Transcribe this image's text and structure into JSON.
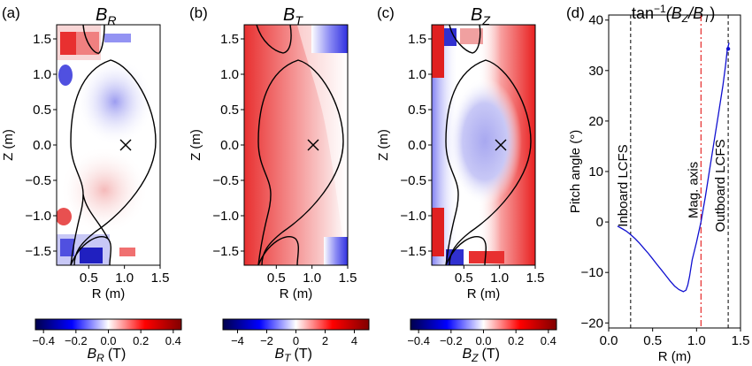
{
  "panels": [
    {
      "letter": "(a)",
      "title_main": "B",
      "title_sub": "R",
      "xlabel": "R (m)",
      "ylabel": "Z (m)",
      "xticks": [
        "0.5",
        "1.0",
        "1.5"
      ],
      "yticks": [
        "1.5",
        "1.0",
        "0.5",
        "0.0",
        "−0.5",
        "−1.0",
        "−1.5"
      ],
      "colorbar_ticks": [
        "−0.4",
        "−0.2",
        "0.0",
        "0.2",
        "0.4"
      ],
      "colorbar_label_main": "B",
      "colorbar_label_sub": "R",
      "colorbar_label_unit": "(T)",
      "colorbar_range": [
        -0.45,
        0.45
      ]
    },
    {
      "letter": "(b)",
      "title_main": "B",
      "title_sub": "T",
      "xlabel": "R (m)",
      "ylabel": "Z (m)",
      "xticks": [
        "0.5",
        "1.0",
        "1.5"
      ],
      "yticks": [
        "1.5",
        "1.0",
        "0.5",
        "0.0",
        "−0.5",
        "−1.0",
        "−1.5"
      ],
      "colorbar_ticks": [
        "−4",
        "−2",
        "0",
        "2",
        "4"
      ],
      "colorbar_label_main": "B",
      "colorbar_label_sub": "T",
      "colorbar_label_unit": "(T)",
      "colorbar_range": [
        -5,
        5
      ]
    },
    {
      "letter": "(c)",
      "title_main": "B",
      "title_sub": "Z",
      "xlabel": "R (m)",
      "ylabel": "Z (m)",
      "xticks": [
        "0.5",
        "1.0",
        "1.5"
      ],
      "yticks": [
        "1.5",
        "1.0",
        "0.5",
        "0.0",
        "−0.5",
        "−1.0",
        "−1.5"
      ],
      "colorbar_ticks": [
        "−0.4",
        "−0.2",
        "0.0",
        "0.2",
        "0.4"
      ],
      "colorbar_label_main": "B",
      "colorbar_label_sub": "Z",
      "colorbar_label_unit": "(T)",
      "colorbar_range": [
        -0.45,
        0.45
      ]
    }
  ],
  "colors": {
    "blue": "#0000cc",
    "red": "#cc0000",
    "contour": "#000000",
    "line": "#1010d0",
    "axis_red": "#e00000"
  },
  "chart_data": [
    {
      "type": "heatmap",
      "title": "B_R",
      "xlabel": "R (m)",
      "ylabel": "Z (m)",
      "xlim": [
        0.05,
        1.5
      ],
      "ylim": [
        -1.7,
        1.7
      ],
      "magnetic_axis": [
        1.05,
        0.0
      ],
      "clim": [
        -0.45,
        0.45
      ]
    },
    {
      "type": "heatmap",
      "title": "B_T",
      "xlabel": "R (m)",
      "ylabel": "Z (m)",
      "xlim": [
        0.05,
        1.5
      ],
      "ylim": [
        -1.7,
        1.7
      ],
      "magnetic_axis": [
        1.05,
        0.0
      ],
      "clim": [
        -5,
        5
      ]
    },
    {
      "type": "heatmap",
      "title": "B_Z",
      "xlabel": "R (m)",
      "ylabel": "Z (m)",
      "xlim": [
        0.05,
        1.5
      ],
      "ylim": [
        -1.7,
        1.7
      ],
      "magnetic_axis": [
        1.05,
        0.0
      ],
      "clim": [
        -0.45,
        0.45
      ]
    },
    {
      "type": "line",
      "letter": "(d)",
      "title": "tan⁻¹(B_Z/B_T)",
      "title_prefix": "tan",
      "title_sup": "−1",
      "title_args_open": "(B",
      "title_args_z": "Z",
      "title_args_mid": "/B",
      "title_args_t": "T",
      "title_args_close": ")",
      "xlabel": "R (m)",
      "ylabel": "Pitch angle (°)",
      "xlim": [
        0.0,
        1.5
      ],
      "ylim": [
        -21,
        41
      ],
      "xticks": [
        "0.0",
        "0.5",
        "1.0",
        "1.5"
      ],
      "yticks": [
        "40",
        "30",
        "20",
        "10",
        "0",
        "−10",
        "−20"
      ],
      "series": [
        {
          "name": "pitch angle",
          "x": [
            0.1,
            0.15,
            0.2,
            0.25,
            0.3,
            0.35,
            0.4,
            0.45,
            0.5,
            0.55,
            0.6,
            0.65,
            0.7,
            0.75,
            0.8,
            0.85,
            0.88,
            0.9,
            0.92,
            0.95,
            1.0,
            1.05,
            1.1,
            1.15,
            1.2,
            1.25,
            1.3,
            1.33,
            1.35,
            1.37
          ],
          "y": [
            -0.8,
            -1.3,
            -1.8,
            -2.5,
            -3.3,
            -4.2,
            -5.2,
            -6.2,
            -7.3,
            -8.4,
            -9.5,
            -10.6,
            -11.7,
            -12.7,
            -13.4,
            -13.8,
            -13.5,
            -12.5,
            -10.8,
            -7.5,
            -4.0,
            0.0,
            5.0,
            10.5,
            16.0,
            21.5,
            27.0,
            31.0,
            34.2,
            35.5
          ]
        }
      ],
      "vlines": [
        {
          "label": "Inboard LCFS",
          "x": 0.25,
          "style": "dashed",
          "color": "black"
        },
        {
          "label": "Mag. axis",
          "x": 1.05,
          "style": "dashdot",
          "color": "red"
        },
        {
          "label": "Outboard LCFS",
          "x": 1.36,
          "style": "dashed",
          "color": "black"
        }
      ]
    }
  ]
}
